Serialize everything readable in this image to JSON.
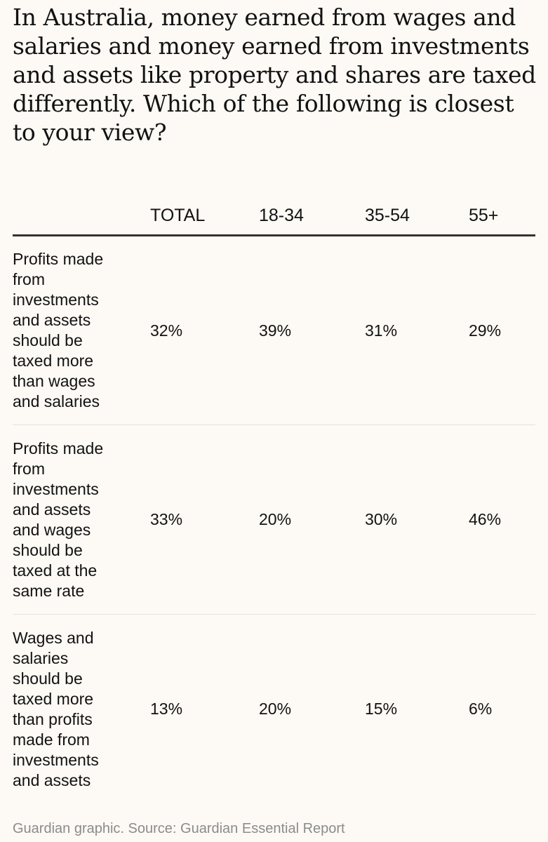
{
  "title": "In Australia, money earned from wages and salaries and money earned from investments and assets like property and shares are taxed differently. Which of the following is closest to your view?",
  "source": "Guardian graphic. Source: Guardian Essential Report",
  "chart_data": {
    "type": "table",
    "columns": [
      "TOTAL",
      "18-34",
      "35-54",
      "55+"
    ],
    "rows": [
      {
        "label": "Profits made from investments and assets should be taxed more than wages and salaries",
        "values": [
          "32%",
          "39%",
          "31%",
          "29%"
        ]
      },
      {
        "label": "Profits made from investments and assets and wages should be taxed at the same rate",
        "values": [
          "33%",
          "20%",
          "30%",
          "46%"
        ]
      },
      {
        "label": "Wages and salaries should be taxed more than profits made from investments and assets",
        "values": [
          "13%",
          "20%",
          "15%",
          "6%"
        ]
      }
    ]
  }
}
